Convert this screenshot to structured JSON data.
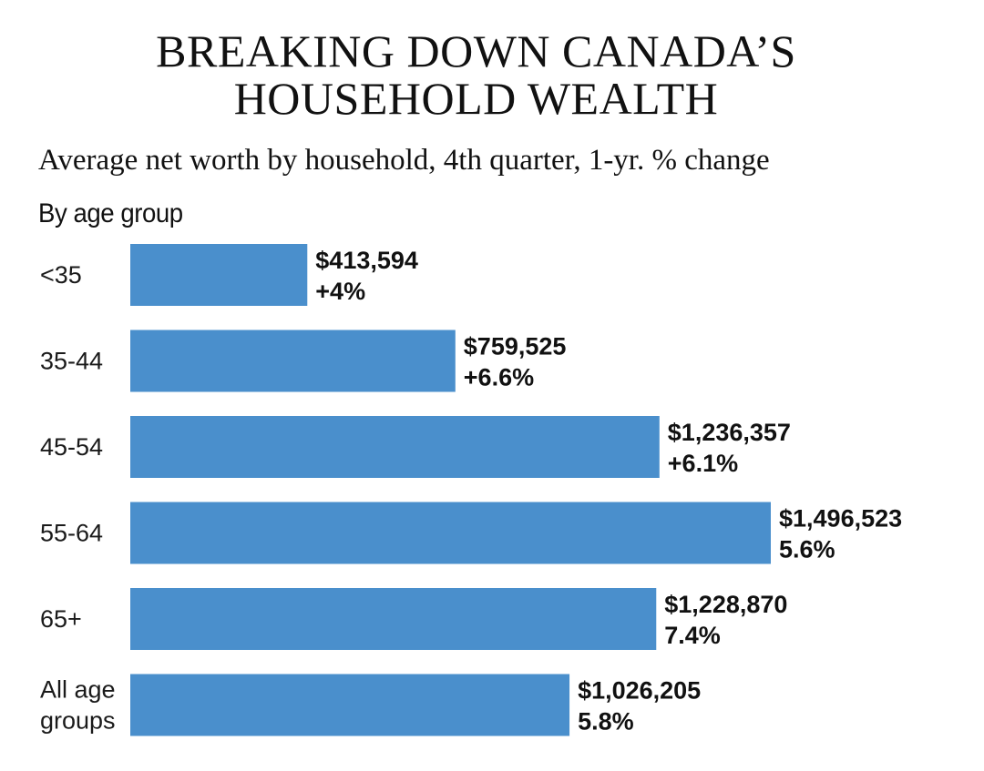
{
  "header": {
    "title_line1": "BREAKING DOWN CANADA’S",
    "title_line2": "HOUSEHOLD WEALTH",
    "subtitle": "Average net worth by household, 4th quarter, 1-yr. % change",
    "section_label": "By age group"
  },
  "colors": {
    "bar": "#4a8fcc",
    "text": "#111111"
  },
  "chart_data": {
    "type": "bar",
    "orientation": "horizontal",
    "title": "BREAKING DOWN CANADA’S HOUSEHOLD WEALTH",
    "subtitle": "Average net worth by household, 4th quarter, 1-yr. % change",
    "categories": [
      [
        "<35"
      ],
      [
        "35-44"
      ],
      [
        "45-54"
      ],
      [
        "55-64"
      ],
      [
        "65+"
      ],
      [
        "All age",
        "groups"
      ]
    ],
    "values": [
      413594,
      759525,
      1236357,
      1496523,
      1228870,
      1026205
    ],
    "value_labels": [
      "$413,594",
      "$759,525",
      "$1,236,357",
      "$1,496,523",
      "$1,228,870",
      "$1,026,205"
    ],
    "change_labels": [
      "+4%",
      "+6.6%",
      "+6.1%",
      "5.6%",
      "7.4%",
      "5.8%"
    ],
    "xlabel": "",
    "ylabel": "",
    "xlim": [
      0,
      1496523
    ],
    "grid": false,
    "legend": "none"
  }
}
